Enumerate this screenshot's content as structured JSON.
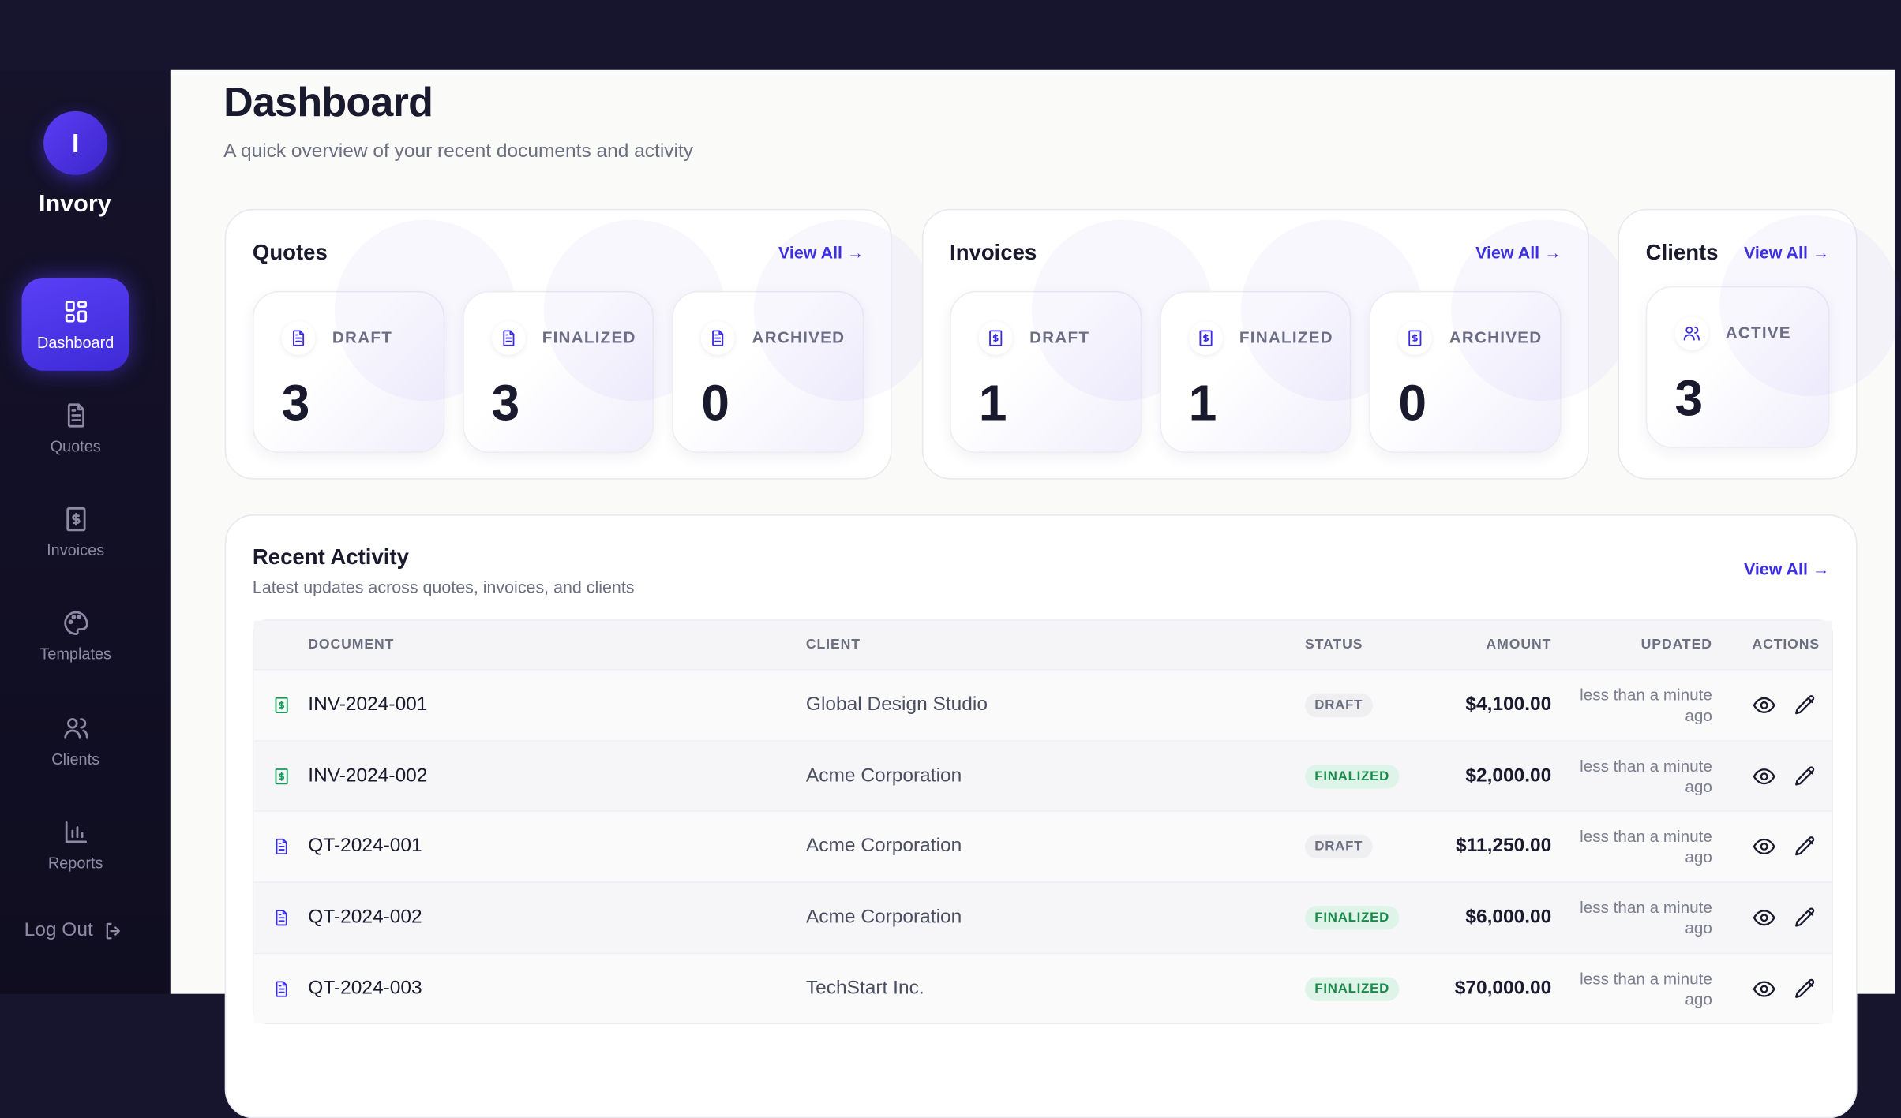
{
  "sidebar": {
    "brand_initial": "I",
    "brand": "Invory",
    "nav": [
      "Dashboard",
      "Quotes",
      "Invoices",
      "Templates",
      "Clients",
      "Reports"
    ],
    "logout": "Log Out"
  },
  "header": {
    "title": "Dashboard",
    "subtitle": "A quick overview of your recent documents and activity"
  },
  "cards": [
    {
      "title": "Quotes",
      "link": "View All →",
      "stats": [
        {
          "label": "DRAFT",
          "value": 3
        },
        {
          "label": "FINALIZED",
          "value": 3
        },
        {
          "label": "ARCHIVED",
          "value": 0
        }
      ]
    },
    {
      "title": "Invoices",
      "link": "View All →",
      "stats": [
        {
          "label": "DRAFT",
          "value": 1
        },
        {
          "label": "FINALIZED",
          "value": 1
        },
        {
          "label": "ARCHIVED",
          "value": 0
        }
      ]
    },
    {
      "title": "Clients",
      "link": "View All →",
      "stats": [
        {
          "label": "ACTIVE",
          "value": 3
        }
      ]
    }
  ],
  "activity": {
    "title": "Recent Activity",
    "subtitle": "Latest updates across quotes, invoices, and clients",
    "link": "View All →",
    "columns": [
      "DOCUMENT",
      "CLIENT",
      "STATUS",
      "AMOUNT",
      "UPDATED",
      "ACTIONS"
    ],
    "rows": [
      [
        "INV-2024-001",
        "Global Design Studio",
        "DRAFT",
        "$4,100.00",
        "less than a minute ago"
      ],
      [
        "INV-2024-002",
        "Acme Corporation",
        "FINALIZED",
        "$2,000.00",
        "less than a minute ago"
      ],
      [
        "QT-2024-001",
        "Acme Corporation",
        "DRAFT",
        "$11,250.00",
        "less than a minute ago"
      ],
      [
        "QT-2024-002",
        "Acme Corporation",
        "FINALIZED",
        "$6,000.00",
        "less than a minute ago"
      ],
      [
        "QT-2024-003",
        "TechStart Inc.",
        "FINALIZED",
        "$70,000.00",
        "less than a minute ago"
      ]
    ]
  }
}
